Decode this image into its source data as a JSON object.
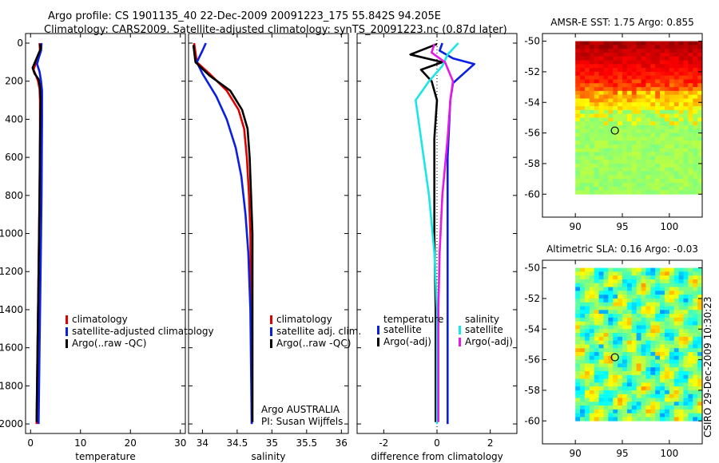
{
  "header": {
    "line1": "Argo profile: CS 1901135_40 22-Dec-2009 20091223_175 55.842S 94.205E",
    "line2": "Climatology: CARS2009. Satellite-adjusted climatology: synTS_20091223.nc (0.87d later)"
  },
  "colors": {
    "climatology": "#e00000",
    "satellite": "#0a1ee6",
    "argo": "#000000",
    "sat_salinity": "#19e6e6",
    "argo_salinity": "#e619e6"
  },
  "footer_stamp": "CSIRO 29-Dec-2009 10:30:23",
  "chart_data": [
    {
      "type": "line",
      "name": "temperature-panel",
      "xlabel": "temperature",
      "xlim": [
        -1,
        31
      ],
      "ylim": [
        2050,
        0
      ],
      "xticks": [
        0,
        10,
        20,
        30
      ],
      "xtick_labels": [
        "0",
        "10",
        "20",
        "30"
      ],
      "yticks": [
        0,
        200,
        400,
        600,
        800,
        1000,
        1200,
        1400,
        1600,
        1800,
        2000
      ],
      "ytick_labels": [
        "0",
        "200",
        "400",
        "600",
        "800",
        "1000",
        "1200",
        "1400",
        "1600",
        "1800",
        "2000"
      ],
      "legend": [
        "climatology",
        "satellite-adjusted climatology",
        "Argo(..raw -QC)"
      ],
      "series": [
        {
          "name": "climatology",
          "color_key": "climatology",
          "points": [
            [
              1.8,
              0
            ],
            [
              1.9,
              40
            ],
            [
              1.1,
              100
            ],
            [
              0.6,
              140
            ],
            [
              1.1,
              170
            ],
            [
              1.5,
              200
            ],
            [
              1.8,
              240
            ],
            [
              1.9,
              300
            ],
            [
              1.9,
              500
            ],
            [
              1.8,
              800
            ],
            [
              1.6,
              1200
            ],
            [
              1.4,
              1600
            ],
            [
              1.2,
              2000
            ]
          ]
        },
        {
          "name": "satellite-adjusted climatology",
          "color_key": "satellite",
          "points": [
            [
              2.2,
              0
            ],
            [
              2.1,
              40
            ],
            [
              1.6,
              80
            ],
            [
              1.3,
              110
            ],
            [
              1.8,
              150
            ],
            [
              2.1,
              200
            ],
            [
              2.3,
              250
            ],
            [
              2.3,
              400
            ],
            [
              2.2,
              800
            ],
            [
              2.0,
              1200
            ],
            [
              1.8,
              1600
            ],
            [
              1.6,
              2000
            ]
          ]
        },
        {
          "name": "Argo(..raw -QC)",
          "color_key": "argo",
          "points": [
            [
              1.9,
              5
            ],
            [
              2.0,
              30
            ],
            [
              1.2,
              80
            ],
            [
              0.4,
              130
            ],
            [
              0.8,
              160
            ],
            [
              1.6,
              190
            ],
            [
              1.9,
              230
            ],
            [
              2.0,
              300
            ],
            [
              1.9,
              500
            ],
            [
              1.8,
              800
            ],
            [
              1.6,
              1200
            ],
            [
              1.4,
              1600
            ],
            [
              1.2,
              1990
            ]
          ]
        }
      ]
    },
    {
      "type": "line",
      "name": "salinity-panel",
      "xlabel": "salinity",
      "xlim": [
        33.8,
        36.1
      ],
      "ylim": [
        2050,
        0
      ],
      "xticks": [
        34,
        34.5,
        35,
        35.5,
        36
      ],
      "xtick_labels": [
        "34",
        "34.5",
        "35",
        "35.5",
        "36"
      ],
      "legend": [
        "climatology",
        "satellite adj. clim.",
        "Argo(..raw -QC)"
      ],
      "annotations": [
        "Argo AUSTRALIA",
        "PI: Susan Wijffels"
      ],
      "series": [
        {
          "name": "climatology",
          "color_key": "climatology",
          "points": [
            [
              33.88,
              0
            ],
            [
              33.92,
              100
            ],
            [
              34.1,
              160
            ],
            [
              34.35,
              250
            ],
            [
              34.52,
              350
            ],
            [
              34.6,
              450
            ],
            [
              34.64,
              600
            ],
            [
              34.67,
              800
            ],
            [
              34.69,
              1000
            ],
            [
              34.7,
              1400
            ],
            [
              34.71,
              2000
            ]
          ]
        },
        {
          "name": "satellite adj. clim.",
          "color_key": "satellite",
          "points": [
            [
              34.05,
              0
            ],
            [
              34.0,
              40
            ],
            [
              33.92,
              100
            ],
            [
              34.0,
              160
            ],
            [
              34.2,
              280
            ],
            [
              34.35,
              400
            ],
            [
              34.48,
              550
            ],
            [
              34.56,
              700
            ],
            [
              34.62,
              900
            ],
            [
              34.66,
              1100
            ],
            [
              34.69,
              1400
            ],
            [
              34.71,
              2000
            ]
          ]
        },
        {
          "name": "Argo(..raw -QC)",
          "color_key": "argo",
          "points": [
            [
              33.87,
              10
            ],
            [
              33.9,
              100
            ],
            [
              34.1,
              170
            ],
            [
              34.4,
              250
            ],
            [
              34.57,
              350
            ],
            [
              34.65,
              450
            ],
            [
              34.68,
              600
            ],
            [
              34.7,
              800
            ],
            [
              34.72,
              1000
            ],
            [
              34.72,
              1400
            ],
            [
              34.72,
              1990
            ]
          ]
        }
      ]
    },
    {
      "type": "line",
      "name": "difference-panel",
      "xlabel": "difference from climatology",
      "xlim": [
        -3.0,
        3.0
      ],
      "ylim": [
        2050,
        0
      ],
      "xticks": [
        -2,
        0,
        2
      ],
      "xtick_labels": [
        "-2",
        "0",
        "2"
      ],
      "legend_temperature_title": "temperature",
      "legend_temperature": [
        "satellite",
        "Argo(-adj)"
      ],
      "legend_salinity_title": "salinity",
      "legend_salinity": [
        "satellite",
        "Argo(-adj)"
      ],
      "series": [
        {
          "name": "temperature satellite",
          "color_key": "satellite",
          "points": [
            [
              0.2,
              0
            ],
            [
              0.1,
              40
            ],
            [
              0.6,
              80
            ],
            [
              1.4,
              110
            ],
            [
              1.0,
              160
            ],
            [
              0.6,
              210
            ],
            [
              0.5,
              300
            ],
            [
              0.4,
              600
            ],
            [
              0.4,
              1000
            ],
            [
              0.4,
              1400
            ],
            [
              0.4,
              2000
            ]
          ]
        },
        {
          "name": "temperature Argo(-adj)",
          "color_key": "argo",
          "points": [
            [
              0.0,
              5
            ],
            [
              -1.0,
              60
            ],
            [
              0.2,
              100
            ],
            [
              -0.6,
              140
            ],
            [
              -0.2,
              200
            ],
            [
              0.0,
              300
            ],
            [
              -0.1,
              500
            ],
            [
              -0.1,
              1000
            ],
            [
              -0.05,
              1400
            ],
            [
              -0.05,
              1990
            ]
          ]
        },
        {
          "name": "salinity satellite",
          "color_key": "sat_salinity",
          "points": [
            [
              0.8,
              0
            ],
            [
              0.4,
              60
            ],
            [
              0.2,
              120
            ],
            [
              -0.3,
              200
            ],
            [
              -0.8,
              300
            ],
            [
              -0.6,
              500
            ],
            [
              -0.3,
              800
            ],
            [
              -0.1,
              1100
            ],
            [
              0.0,
              1400
            ],
            [
              0.0,
              2000
            ]
          ]
        },
        {
          "name": "salinity Argo(-adj)",
          "color_key": "argo_salinity",
          "points": [
            [
              -0.1,
              5
            ],
            [
              -0.2,
              50
            ],
            [
              0.3,
              100
            ],
            [
              0.6,
              200
            ],
            [
              0.5,
              300
            ],
            [
              0.4,
              500
            ],
            [
              0.2,
              800
            ],
            [
              0.1,
              1100
            ],
            [
              0.05,
              1400
            ],
            [
              0.05,
              1990
            ]
          ]
        }
      ]
    },
    {
      "type": "heatmap",
      "name": "sst-map",
      "title": "AMSR-E SST: 1.75 Argo: 0.855",
      "xlim": [
        86.5,
        103.5
      ],
      "ylim": [
        -61.5,
        -49.5
      ],
      "data_xrange": [
        90,
        103.5
      ],
      "data_yrange": [
        -60,
        -50
      ],
      "xticks": [
        90,
        95,
        100
      ],
      "xtick_labels": [
        "90",
        "95",
        "100"
      ],
      "yticks": [
        -50,
        -52,
        -54,
        -56,
        -58,
        -60
      ],
      "ytick_labels": [
        "-50",
        "-52",
        "-54",
        "-56",
        "-58",
        "-60"
      ],
      "marker": [
        94.205,
        -55.842
      ]
    },
    {
      "type": "heatmap",
      "name": "sla-map",
      "title": "Altimetric SLA: 0.16 Argo: -0.03",
      "xlim": [
        86.5,
        103.5
      ],
      "ylim": [
        -61.5,
        -49.5
      ],
      "data_xrange": [
        90,
        103.5
      ],
      "data_yrange": [
        -60,
        -50
      ],
      "xticks": [
        90,
        95,
        100
      ],
      "xtick_labels": [
        "90",
        "95",
        "100"
      ],
      "yticks": [
        -50,
        -52,
        -54,
        -56,
        -58,
        -60
      ],
      "ytick_labels": [
        "-50",
        "-52",
        "-54",
        "-56",
        "-58",
        "-60"
      ],
      "marker": [
        94.205,
        -55.842
      ]
    }
  ]
}
